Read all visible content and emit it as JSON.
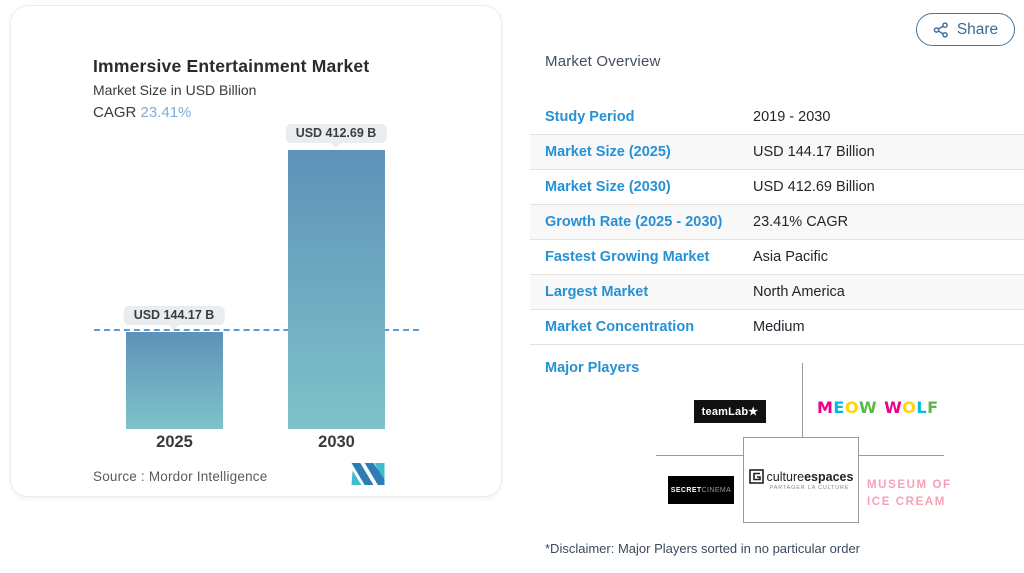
{
  "share": {
    "label": "Share"
  },
  "chart_card": {
    "title": "Immersive Entertainment Market",
    "subtitle": "Market Size in USD Billion",
    "cagr_label": "CAGR",
    "cagr_value": "23.41%",
    "source": "Source :  Mordor Intelligence"
  },
  "chart_data": {
    "type": "bar",
    "categories": [
      "2025",
      "2030"
    ],
    "values": [
      144.17,
      412.69
    ],
    "value_labels": [
      "USD 144.17 B",
      "USD 412.69 B"
    ],
    "unit": "USD Billion",
    "title": "Immersive Entertainment Market",
    "subtitle": "Market Size in USD Billion",
    "cagr_percent": 23.41,
    "reference_line": {
      "value": 144.17,
      "style": "dashed"
    },
    "ylim": [
      0,
      440
    ],
    "bar_gradient_top": "#5e92b8",
    "bar_gradient_bottom": "#7fc2ca",
    "grid": false,
    "legend": false,
    "source": "Mordor Intelligence"
  },
  "overview": {
    "heading": "Market Overview",
    "rows": [
      {
        "label": "Study Period",
        "value": "2019 - 2030"
      },
      {
        "label": "Market Size (2025)",
        "value": "USD 144.17 Billion"
      },
      {
        "label": "Market Size (2030)",
        "value": "USD 412.69 Billion"
      },
      {
        "label": "Growth Rate (2025 - 2030)",
        "value": "23.41% CAGR"
      },
      {
        "label": "Fastest Growing Market",
        "value": "Asia Pacific"
      },
      {
        "label": "Largest Market",
        "value": "North America"
      },
      {
        "label": "Market Concentration",
        "value": "Medium"
      }
    ],
    "major_players_label": "Major Players",
    "disclaimer": "*Disclaimer: Major Players sorted in no particular order"
  },
  "players": {
    "teamlab": "teamLab★",
    "meow_wolf": {
      "letters": [
        "M",
        "E",
        "O",
        "W",
        "W",
        "O",
        "L",
        "F"
      ],
      "colors": [
        "#ec008c",
        "#00bce4",
        "#ffd400",
        "#5cb947",
        "#ec008c",
        "#ffd400",
        "#00bce4",
        "#5cb947"
      ],
      "space_after_index": 3
    },
    "secret_cinema": {
      "part1": "SECRET",
      "part2": "CINEMA"
    },
    "culturespaces": {
      "part1": "culture",
      "part2": "espaces",
      "tagline": "PARTAGER LA CULTURE"
    },
    "museum_of_ice_cream": {
      "line1": "MUSEUM OF",
      "line2": "ICE CREAM"
    }
  },
  "colors": {
    "accent_blue": "#2691d4",
    "cagr_blue": "#7fadd6",
    "share_blue": "#46749c",
    "dashed_line_blue": "#5f9bd6",
    "museum_pink": "#f9a0b5",
    "logo_dark_blue": "#2e7cb5",
    "logo_teal": "#3fbdcf"
  }
}
